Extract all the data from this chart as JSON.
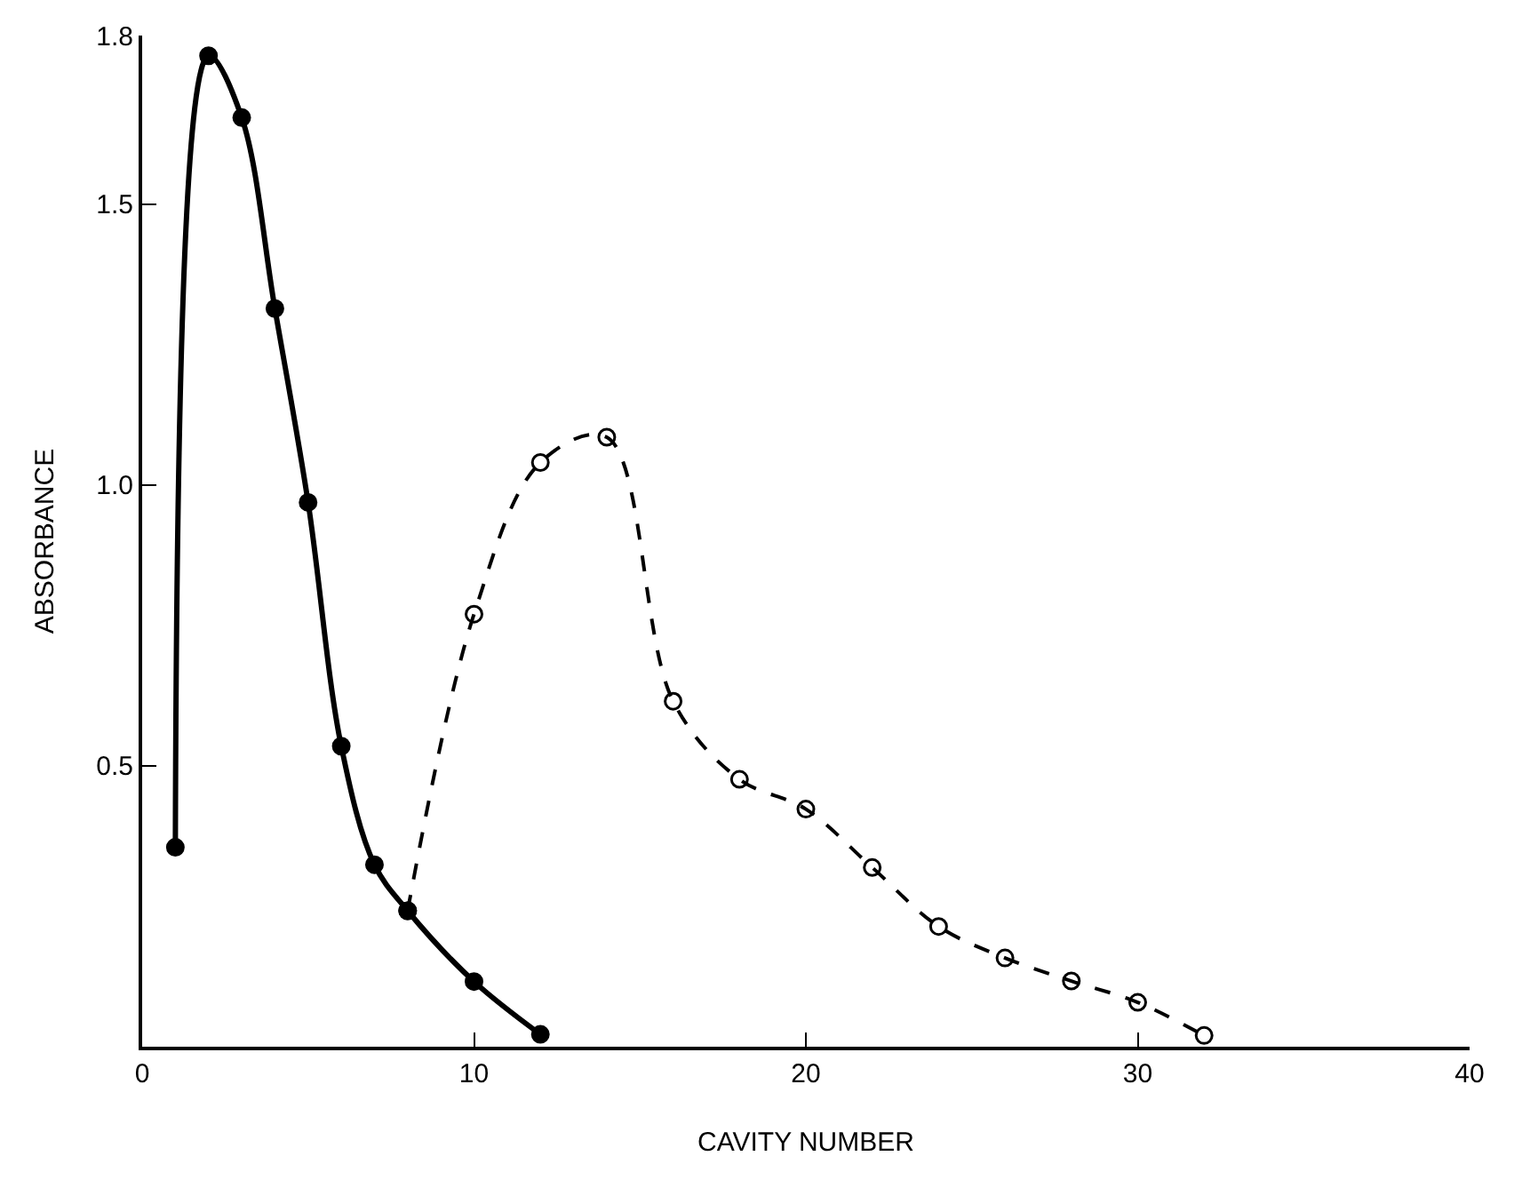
{
  "chart_data": {
    "type": "line",
    "xlabel": "CAVITY NUMBER",
    "ylabel": "ABSORBANCE",
    "xlim": [
      0,
      40
    ],
    "xticks": [
      0,
      10,
      20,
      30,
      40
    ],
    "ylim": [
      0,
      1.8
    ],
    "yticks": [
      {
        "value": 0.5,
        "label": "0.5"
      },
      {
        "value": 1.0,
        "label": "1.0"
      },
      {
        "value": 1.5,
        "label": "1.5"
      },
      {
        "value": 1.8,
        "label": "1.8"
      }
    ],
    "series": [
      {
        "color": "#000000",
        "marker": "circle",
        "line_style": "solid",
        "x": [
          1,
          2,
          3,
          4,
          5,
          6,
          7,
          8,
          10,
          12
        ],
        "values": [
          0.355,
          1.764,
          1.654,
          1.314,
          0.969,
          0.535,
          0.324,
          0.242,
          0.116,
          0.022
        ]
      },
      {
        "color": "#000000",
        "marker": "circle-open",
        "line_style": "dashed",
        "x": [
          8,
          10,
          12,
          14,
          16,
          18,
          20,
          22,
          24,
          26,
          28,
          30,
          32
        ],
        "values": [
          0.242,
          0.77,
          1.04,
          1.085,
          0.615,
          0.476,
          0.423,
          0.319,
          0.214,
          0.158,
          0.117,
          0.079,
          0.02
        ]
      }
    ]
  }
}
